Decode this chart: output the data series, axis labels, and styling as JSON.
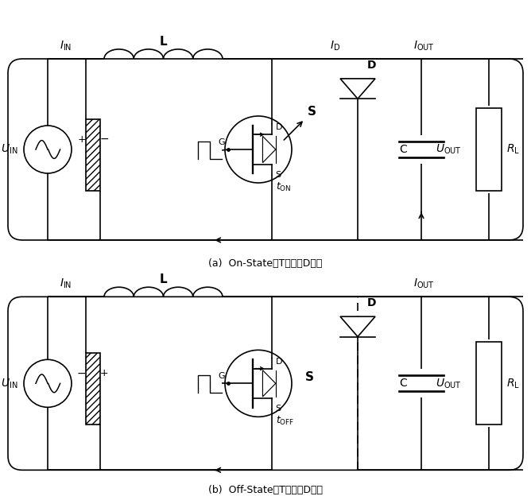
{
  "fig_width": 6.68,
  "fig_height": 6.34,
  "lw": 1.2,
  "caption_a": "(a)  On-State；T导通，D截止",
  "caption_b": "(b)  Off-State；T截止，D导通",
  "label_IIN": "$I_\\mathrm{IN}$",
  "label_IOUT": "$I_\\mathrm{OUT}$",
  "label_ID": "$I_\\mathrm{D}$",
  "label_UIN": "$U_\\mathrm{IN}$",
  "label_UOUT": "$U_\\mathrm{OUT}$",
  "label_L": "L",
  "label_C": "C",
  "label_D": "D",
  "label_S": "S",
  "label_RL": "$R_\\mathrm{L}$",
  "label_ton": "$t_\\mathrm{ON}$",
  "label_toff": "$t_\\mathrm{OFF}$",
  "label_G": "G",
  "label_Dt": "D",
  "label_St": "S"
}
